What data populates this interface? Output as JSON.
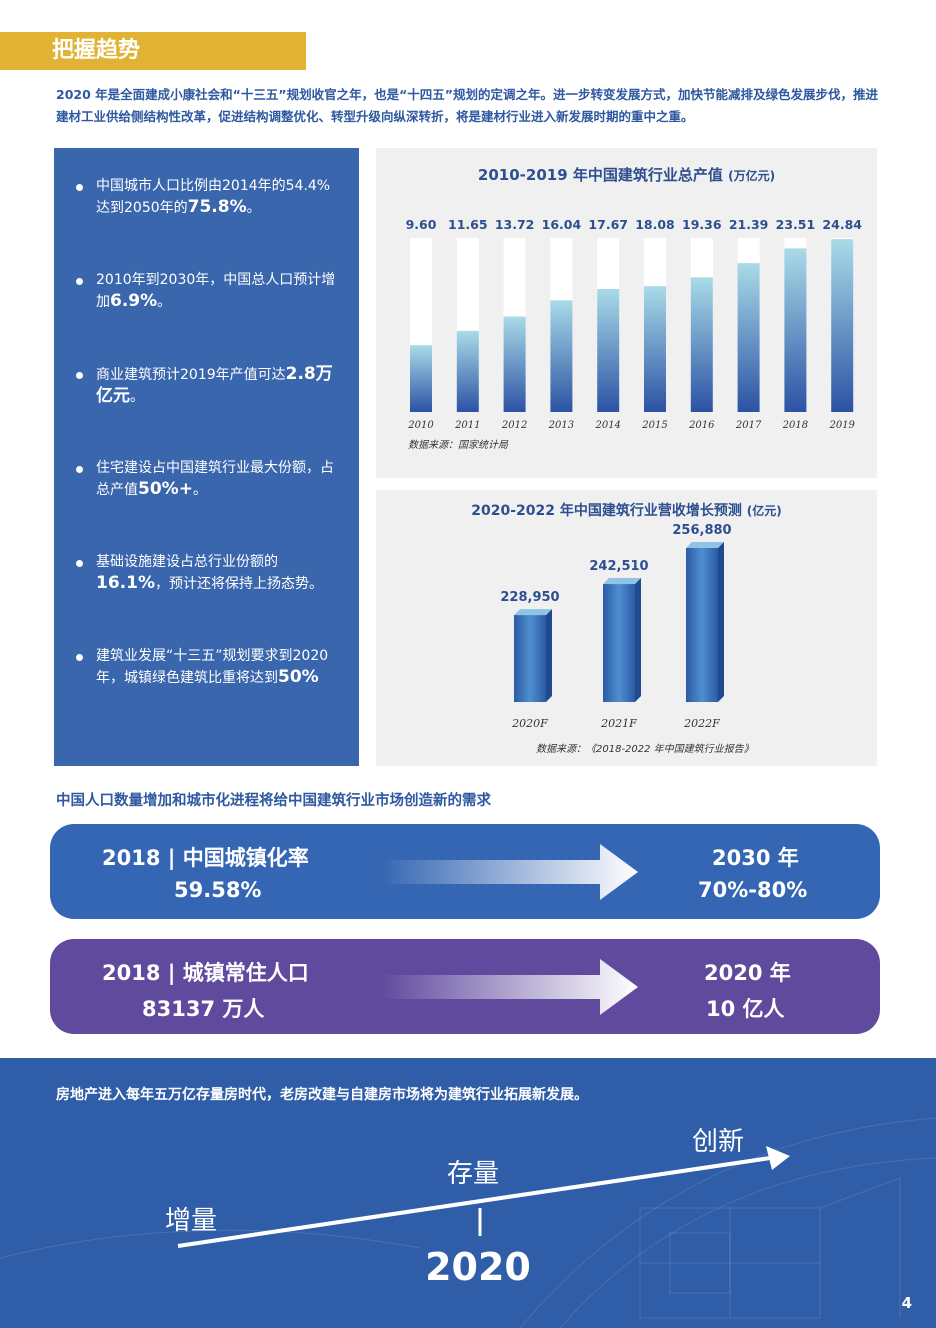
{
  "section_title": "把握趋势",
  "intro": "2020 年是全面建成小康社会和“十三五”规划收官之年，也是“十四五”规划的定调之年。进一步转变发展方式，加快节能减排及绿色发展步伐，推进建材工业供给侧结构性改革，促进结构调整优化、转型升级向纵深转折，将是建材行业进入新发展时期的重中之重。",
  "facts": [
    {
      "text": "中国城市人口比例由2014年的54.4% 达到2050年的",
      "highlight": "75.8%",
      "tail": "。"
    },
    {
      "text": "2010年到2030年，中国总人口预计增加",
      "highlight": "6.9%",
      "tail": "。"
    },
    {
      "text": "商业建筑预计2019年产值可达",
      "highlight": "2.8万亿元",
      "tail": "。"
    },
    {
      "text": "住宅建设占中国建筑行业最大份额，占总产值",
      "highlight": "50%+",
      "tail": "。"
    },
    {
      "text": "基础设施建设占总行业份额的",
      "highlight": "16.1%",
      "tail": "，预计还将保持上扬态势。"
    },
    {
      "text": "建筑业发展“十三五”规划要求到2020年，城镇绿色建筑比重将达到",
      "highlight": "50%",
      "tail": ""
    }
  ],
  "chart_data": [
    {
      "type": "bar",
      "title": "2010-2019 年中国建筑行业总产值",
      "unit": "(万亿元)",
      "categories": [
        "2010",
        "2011",
        "2012",
        "2013",
        "2014",
        "2015",
        "2016",
        "2017",
        "2018",
        "2019"
      ],
      "values": [
        9.6,
        11.65,
        13.72,
        16.04,
        17.67,
        18.08,
        19.36,
        21.39,
        23.51,
        24.84
      ],
      "value_labels": [
        "9.60",
        "11.65",
        "13.72",
        "16.04",
        "17.67",
        "18.08",
        "19.36",
        "21.39",
        "23.51",
        "24.84"
      ],
      "ylim": [
        0,
        25
      ],
      "source": "数据来源：国家统计局"
    },
    {
      "type": "bar",
      "title": "2020-2022 年中国建筑行业营收增长预测",
      "unit": "(亿元)",
      "categories": [
        "2020F",
        "2021F",
        "2022F"
      ],
      "values": [
        228950,
        242510,
        256880
      ],
      "value_labels": [
        "228,950",
        "242,510",
        "256,880"
      ],
      "source": "数据来源：《2018-2022 年中国建筑行业报告》"
    }
  ],
  "need_title": "中国人口数量增加和城市化进程将给中国建筑行业市场创造新的需求",
  "bands": [
    {
      "left_top": "2018 | 中国城镇化率",
      "left_bottom": "59.58%",
      "right_top": "2030 年",
      "right_bottom": "70%-80%",
      "color": "#3566b3"
    },
    {
      "left_top": "2018 | 城镇常住人口",
      "left_bottom": "83137 万人",
      "right_top": "2020 年",
      "right_bottom": "10 亿人",
      "color": "#5f4a9e"
    }
  ],
  "bottom": {
    "text": "房地产进入每年五万亿存量房时代，老房改建与自建房市场将为建筑行业拓展新发展。",
    "stage1": "增量",
    "stage2": "存量",
    "stage3": "创新",
    "year": "2020"
  },
  "page_number": "4"
}
